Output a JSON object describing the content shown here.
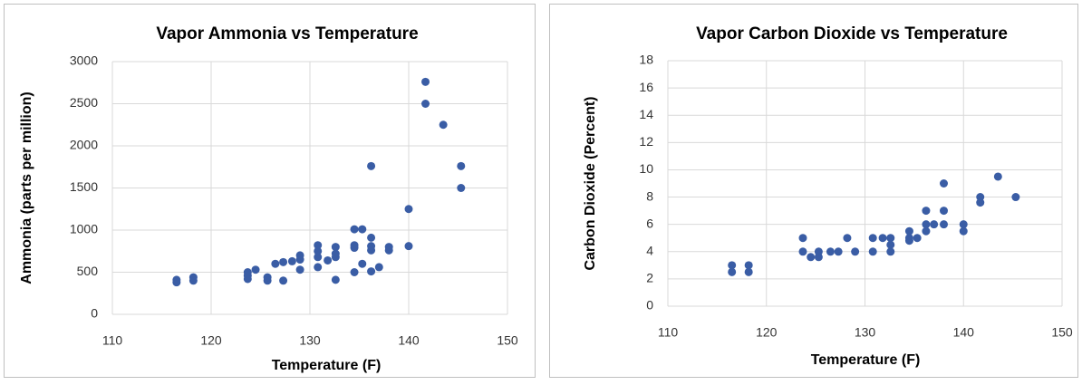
{
  "chart_data": [
    {
      "type": "scatter",
      "title": "Vapor Ammonia vs Temperature",
      "x_label": "Temperature (F)",
      "y_label": "Ammonia (parts per million)",
      "color": "#3a5da5",
      "grid": true,
      "xlim": [
        110,
        150
      ],
      "xticks": [
        110,
        120,
        130,
        140,
        150
      ],
      "ylim": [
        0,
        3000
      ],
      "yticks": [
        0,
        500,
        1000,
        1500,
        2000,
        2500,
        3000
      ],
      "x": [
        116.5,
        116.5,
        118.2,
        118.2,
        123.7,
        123.7,
        123.7,
        124.5,
        125.7,
        125.7,
        126.5,
        127.3,
        127.3,
        128.2,
        129,
        129,
        129,
        130.8,
        130.8,
        130.8,
        130.8,
        131.8,
        132.6,
        132.6,
        132.6,
        132.6,
        134.5,
        134.5,
        134.5,
        134.5,
        135.3,
        135.3,
        136.2,
        136.2,
        136.2,
        136.2,
        136.2,
        137,
        138,
        138,
        140,
        140,
        141.7,
        141.7,
        143.5,
        145.3,
        145.3
      ],
      "values": [
        380,
        410,
        400,
        440,
        420,
        460,
        500,
        530,
        400,
        440,
        600,
        400,
        620,
        630,
        530,
        650,
        700,
        560,
        680,
        750,
        820,
        640,
        410,
        680,
        720,
        800,
        500,
        790,
        820,
        1010,
        600,
        1010,
        510,
        760,
        810,
        910,
        1760,
        560,
        760,
        800,
        810,
        1250,
        2500,
        2760,
        2250,
        1500,
        1760
      ]
    },
    {
      "type": "scatter",
      "title": "Vapor Carbon Dioxide vs Temperature",
      "x_label": "Temperature (F)",
      "y_label": "Carbon Dioxide (Percent)",
      "color": "#3a5da5",
      "grid": true,
      "xlim": [
        110,
        150
      ],
      "xticks": [
        110,
        120,
        130,
        140,
        150
      ],
      "ylim": [
        0,
        18
      ],
      "yticks": [
        0,
        2,
        4,
        6,
        8,
        10,
        12,
        14,
        16,
        18
      ],
      "x": [
        116.5,
        116.5,
        118.2,
        118.2,
        123.7,
        123.7,
        124.5,
        125.3,
        125.3,
        126.5,
        127.3,
        128.2,
        129,
        130.8,
        130.8,
        131.8,
        132.6,
        132.6,
        132.6,
        134.5,
        134.5,
        134.5,
        135.3,
        136.2,
        136.2,
        136.2,
        137,
        138,
        138,
        138,
        140,
        140,
        141.7,
        141.7,
        143.5,
        145.3
      ],
      "values": [
        2.5,
        3,
        2.5,
        3,
        4,
        5,
        3.6,
        3.6,
        4,
        4,
        4,
        5,
        4,
        4,
        5,
        5,
        4,
        4.5,
        5,
        5,
        5.5,
        4.8,
        5,
        5.5,
        6,
        7,
        6,
        6,
        7,
        9,
        5.5,
        6,
        7.6,
        8,
        9.5,
        8
      ]
    }
  ]
}
